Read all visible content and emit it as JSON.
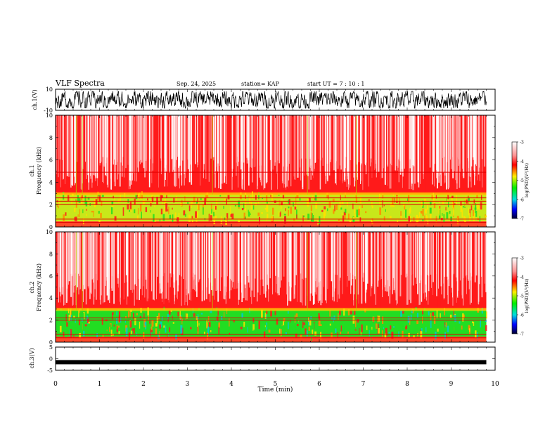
{
  "header": {
    "title": "VLF Spectra",
    "date": "Sep. 24, 2025",
    "station": "station= KAP",
    "start": "start  UT  =   7 : 10 : 1"
  },
  "colors": {
    "red": "#ff1a1a",
    "yellow": "#ffe000",
    "green": "#22dd22",
    "cyan": "#00cccc",
    "blue": "#0000ff",
    "dark_blue": "#000040"
  },
  "chart_data": [
    {
      "type": "line",
      "name": "ch1-waveform",
      "ylabel": "ch.1(V)",
      "ylim": [
        -10,
        10
      ],
      "yticks": [
        10,
        -10
      ],
      "x_range_min": [
        0,
        10
      ],
      "approx_mean": 0,
      "approx_amplitude": 8
    },
    {
      "type": "heatmap",
      "name": "ch1-spectrogram",
      "ylabel": "ch.1",
      "ylabel2": "Frequency  (kHz)",
      "ylim": [
        0,
        10
      ],
      "yticks": [
        0,
        2,
        4,
        6,
        8,
        10
      ],
      "data_end_min": 9.8,
      "low_band_top_kHz": 2.9,
      "notes": "white/red above ~3 kHz, yellow-green band 0.5–3 kHz, horizontal lines near 2 kHz"
    },
    {
      "type": "heatmap",
      "name": "ch2-spectrogram",
      "ylabel": "ch.2",
      "ylabel2": "Frequency  (kHz)",
      "ylim": [
        0,
        10
      ],
      "yticks": [
        0,
        2,
        4,
        6,
        8,
        10
      ],
      "data_end_min": 9.8,
      "low_band_top_kHz": 2.9,
      "notes": "white/red above ~3 kHz, green band 0.5–3 kHz"
    },
    {
      "type": "line",
      "name": "ch3-waveform",
      "ylabel": "ch.3(V)",
      "ylim": [
        -5,
        5
      ],
      "yticks": [
        5,
        0,
        -5
      ],
      "level": -1.5
    }
  ],
  "time_axis": {
    "label": "Time  (min)",
    "range": [
      0,
      10
    ],
    "ticks": [
      "0",
      "1",
      "2",
      "3",
      "4",
      "5",
      "6",
      "7",
      "8",
      "9",
      "10"
    ]
  },
  "colorbar": {
    "label": "log(PSD)(V²/Hz)",
    "range": [
      -7,
      -3
    ],
    "ticks": [
      "-3",
      "-4",
      "-5",
      "-6",
      "-7"
    ]
  }
}
